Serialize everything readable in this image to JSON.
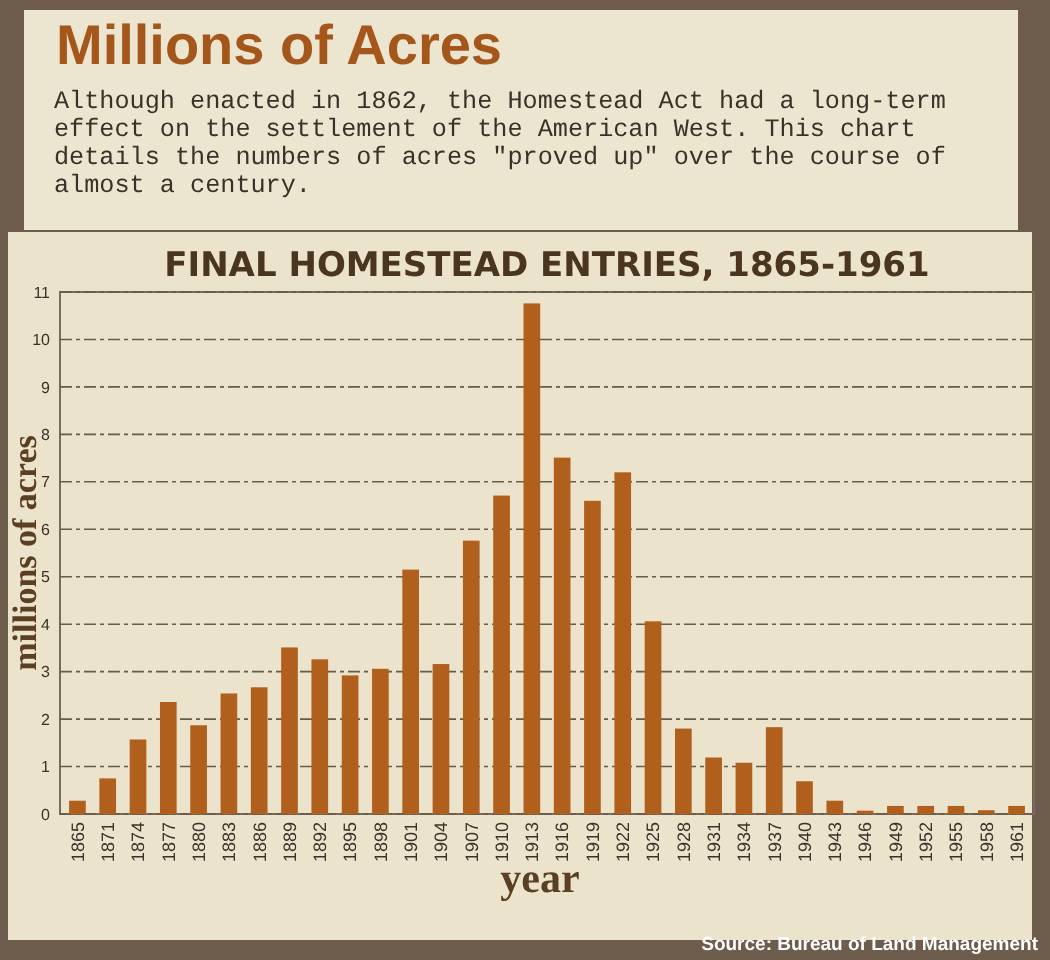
{
  "chart_data": {
    "type": "bar",
    "title": "FINAL HOMESTEAD ENTRIES, 1865-1961",
    "subtitle": "Although enacted in 1862, the Homestead Act had a long-term effect on the settlement of the American West. This chart details the numbers of acres \"proved up\" over the course of almost a century.",
    "annotations": [
      "Millions of Acres",
      "Source: Bureau of Land Management"
    ],
    "xlabel": "year",
    "ylabel": "millions of acres",
    "categories": [
      "1865",
      "1871",
      "1874",
      "1877",
      "1880",
      "1883",
      "1886",
      "1889",
      "1892",
      "1895",
      "1898",
      "1901",
      "1904",
      "1907",
      "1910",
      "1913",
      "1916",
      "1919",
      "1922",
      "1925",
      "1928",
      "1931",
      "1934",
      "1937",
      "1940",
      "1943",
      "1946",
      "1949",
      "1952",
      "1955",
      "1958",
      "1961"
    ],
    "values": [
      0.28,
      0.75,
      1.57,
      2.36,
      1.87,
      2.54,
      2.67,
      3.51,
      3.26,
      2.92,
      3.06,
      5.15,
      3.16,
      5.76,
      6.71,
      10.76,
      7.51,
      6.6,
      7.2,
      4.06,
      1.8,
      1.19,
      1.08,
      1.83,
      0.69,
      0.28,
      0.07,
      0.17,
      0.17,
      0.17,
      0.08,
      0.17
    ],
    "color": "#b0601c",
    "ylim": [
      0,
      11
    ],
    "yticks": [
      0,
      1,
      2,
      3,
      4,
      5,
      6,
      7,
      8,
      9,
      10,
      11
    ],
    "grid": "y"
  }
}
